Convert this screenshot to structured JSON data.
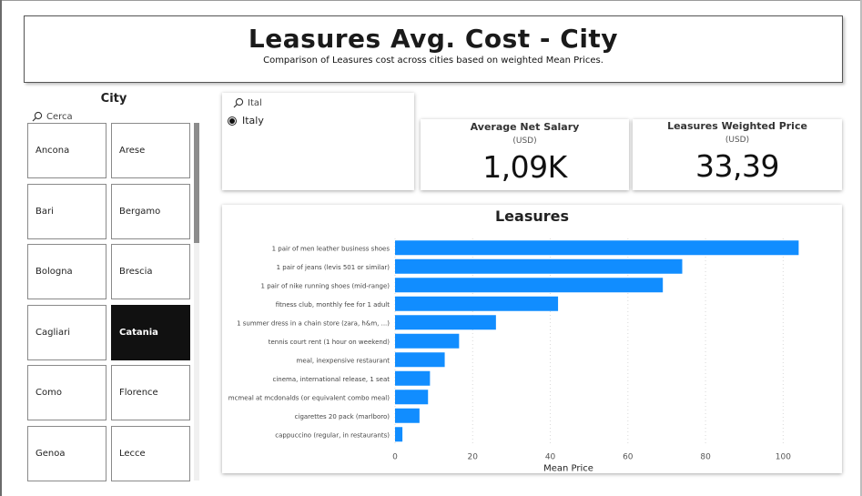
{
  "header": {
    "title": "Leasures Avg. Cost - City",
    "subtitle": "Comparison of Leasures cost across cities based on weighted Mean Prices."
  },
  "city_slicer": {
    "title": "City",
    "search_placeholder": "Cerca",
    "items": [
      {
        "label": "Ancona",
        "selected": false
      },
      {
        "label": "Arese",
        "selected": false
      },
      {
        "label": "Bari",
        "selected": false
      },
      {
        "label": "Bergamo",
        "selected": false
      },
      {
        "label": "Bologna",
        "selected": false
      },
      {
        "label": "Brescia",
        "selected": false
      },
      {
        "label": "Cagliari",
        "selected": false
      },
      {
        "label": "Catania",
        "selected": true
      },
      {
        "label": "Como",
        "selected": false
      },
      {
        "label": "Florence",
        "selected": false
      },
      {
        "label": "Genoa",
        "selected": false
      },
      {
        "label": "Lecce",
        "selected": false
      }
    ]
  },
  "country_slicer": {
    "search_value": "Ital",
    "option": "Italy"
  },
  "kpis": {
    "salary": {
      "label": "Average Net Salary",
      "unit": "(USD)",
      "value": "1,09K"
    },
    "price": {
      "label": "Leasures Weighted Price",
      "unit": "(USD)",
      "value": "33,39"
    }
  },
  "colors": {
    "bar": "#118DFF",
    "selected_tile": "#111111"
  },
  "chart_data": {
    "type": "bar",
    "orientation": "horizontal",
    "title": "Leasures",
    "xlabel": "Mean Price",
    "ylabel": "",
    "xlim": [
      0,
      110
    ],
    "xticks": [
      0,
      20,
      40,
      60,
      80,
      100
    ],
    "grid": true,
    "categories": [
      "1 pair of men leather business shoes",
      "1 pair of jeans (levis 501 or similar)",
      "1 pair of nike running shoes (mid-range)",
      "fitness club, monthly fee for 1 adult",
      "1 summer dress in a chain store (zara, h&m, ...)",
      "tennis court rent (1 hour on weekend)",
      "meal, inexpensive restaurant",
      "cinema, international release, 1 seat",
      "mcmeal at mcdonalds (or equivalent combo meal)",
      "cigarettes 20 pack (marlboro)",
      "cappuccino (regular, in restaurants)"
    ],
    "values": [
      104,
      74,
      69,
      42,
      26,
      16.5,
      12.8,
      9,
      8.5,
      6.3,
      1.9
    ]
  }
}
